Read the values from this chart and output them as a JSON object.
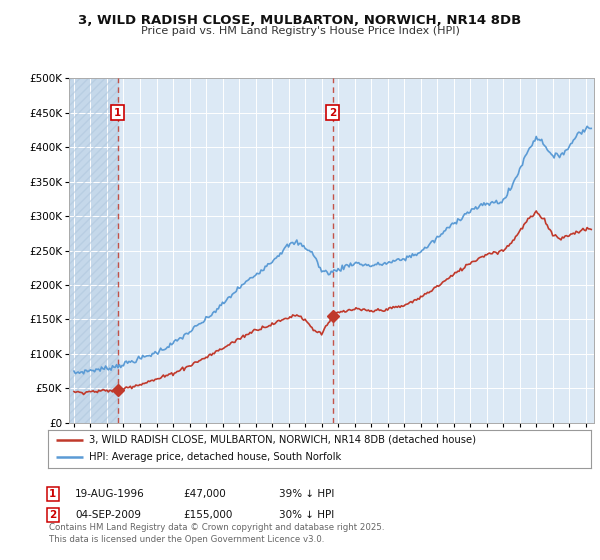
{
  "title": "3, WILD RADISH CLOSE, MULBARTON, NORWICH, NR14 8DB",
  "subtitle": "Price paid vs. HM Land Registry's House Price Index (HPI)",
  "legend_line1": "3, WILD RADISH CLOSE, MULBARTON, NORWICH, NR14 8DB (detached house)",
  "legend_line2": "HPI: Average price, detached house, South Norfolk",
  "annotation1_label": "1",
  "annotation1_date": "19-AUG-1996",
  "annotation1_price": "£47,000",
  "annotation1_hpi": "39% ↓ HPI",
  "annotation2_label": "2",
  "annotation2_date": "04-SEP-2009",
  "annotation2_price": "£155,000",
  "annotation2_hpi": "30% ↓ HPI",
  "footnote": "Contains HM Land Registry data © Crown copyright and database right 2025.\nThis data is licensed under the Open Government Licence v3.0.",
  "sale1_x": 1996.64,
  "sale1_y": 47000,
  "sale2_x": 2009.67,
  "sale2_y": 155000,
  "hpi_color": "#5b9bd5",
  "price_color": "#c0392b",
  "sale_marker_color": "#c0392b",
  "vline_color": "#c0392b",
  "background_plot": "#dce9f5",
  "background_hatch": "#c5d8ea",
  "ylim": [
    0,
    500000
  ],
  "xlim_start": 1993.7,
  "xlim_end": 2025.5,
  "hpi_key_t": [
    1994.0,
    1995.0,
    1996.0,
    1997.0,
    1998.0,
    1999.0,
    2000.0,
    2001.0,
    2002.0,
    2003.0,
    2004.0,
    2005.0,
    2006.0,
    2007.0,
    2007.5,
    2008.0,
    2008.5,
    2009.0,
    2009.5,
    2010.0,
    2010.5,
    2011.0,
    2012.0,
    2013.0,
    2014.0,
    2015.0,
    2016.0,
    2017.0,
    2018.0,
    2019.0,
    2020.0,
    2020.5,
    2021.0,
    2021.5,
    2022.0,
    2022.5,
    2023.0,
    2023.5,
    2024.0,
    2024.5,
    2025.3
  ],
  "hpi_key_v": [
    72000,
    76000,
    79000,
    85000,
    93000,
    102000,
    115000,
    132000,
    150000,
    172000,
    196000,
    215000,
    235000,
    258000,
    262000,
    255000,
    245000,
    220000,
    218000,
    222000,
    228000,
    232000,
    228000,
    232000,
    238000,
    248000,
    268000,
    290000,
    308000,
    318000,
    322000,
    342000,
    368000,
    395000,
    415000,
    405000,
    385000,
    390000,
    400000,
    420000,
    430000
  ],
  "price_key_t": [
    1994.0,
    1995.5,
    1996.6,
    1997.0,
    1998.0,
    1999.0,
    2000.0,
    2001.0,
    2002.0,
    2003.0,
    2004.0,
    2005.0,
    2006.0,
    2007.0,
    2007.5,
    2008.0,
    2008.5,
    2009.0,
    2009.67,
    2010.0,
    2010.5,
    2011.0,
    2012.0,
    2013.0,
    2014.0,
    2015.0,
    2016.0,
    2017.0,
    2018.0,
    2019.0,
    2020.0,
    2020.5,
    2021.0,
    2021.5,
    2022.0,
    2022.5,
    2023.0,
    2023.5,
    2024.0,
    2024.5,
    2025.3
  ],
  "price_key_v": [
    44000,
    46000,
    47000,
    50000,
    56000,
    63000,
    72000,
    83000,
    95000,
    108000,
    122000,
    135000,
    143000,
    153000,
    157000,
    150000,
    135000,
    130000,
    155000,
    160000,
    162000,
    165000,
    162000,
    165000,
    170000,
    182000,
    198000,
    215000,
    232000,
    245000,
    250000,
    262000,
    278000,
    295000,
    305000,
    295000,
    273000,
    268000,
    272000,
    278000,
    282000
  ]
}
